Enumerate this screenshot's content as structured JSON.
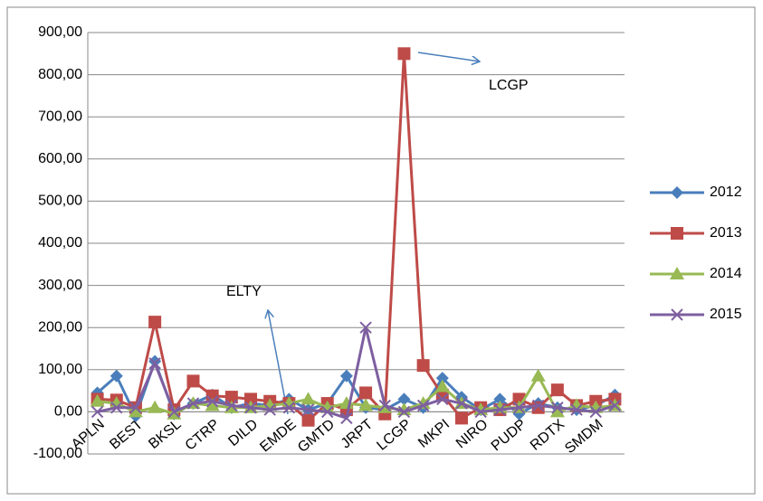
{
  "chart_data": {
    "type": "line",
    "categories": [
      "APLN",
      null,
      "BEST",
      null,
      "BKSL",
      null,
      "CTRP",
      null,
      "DILD",
      null,
      "EMDE",
      null,
      "GMTD",
      null,
      "JRPT",
      null,
      "LCGP",
      null,
      "MKPI",
      null,
      "NIRO",
      null,
      "PUDP",
      null,
      "RDTX",
      null,
      "SMDM",
      null
    ],
    "series": [
      {
        "name": "2012",
        "color": "#4a7ebb",
        "marker": "diamond",
        "values": [
          45,
          85,
          -10,
          120,
          -5,
          20,
          40,
          10,
          20,
          15,
          30,
          5,
          20,
          85,
          10,
          5,
          30,
          10,
          80,
          35,
          5,
          30,
          -5,
          20,
          10,
          5,
          15,
          40
        ]
      },
      {
        "name": "2013",
        "color": "#be4b48",
        "marker": "square",
        "values": [
          30,
          28,
          10,
          213,
          5,
          73,
          38,
          35,
          30,
          25,
          20,
          -20,
          20,
          5,
          45,
          -5,
          850,
          110,
          40,
          -15,
          10,
          5,
          30,
          10,
          52,
          15,
          25,
          30
        ]
      },
      {
        "name": "2014",
        "color": "#98b954",
        "marker": "triangle",
        "values": [
          25,
          20,
          0,
          10,
          -5,
          20,
          15,
          10,
          10,
          15,
          20,
          30,
          10,
          20,
          15,
          10,
          5,
          20,
          60,
          20,
          5,
          10,
          10,
          85,
          0,
          15,
          10,
          15
        ]
      },
      {
        "name": "2015",
        "color": "#7d5fa0",
        "marker": "x",
        "values": [
          0,
          10,
          10,
          115,
          0,
          20,
          25,
          15,
          10,
          5,
          10,
          5,
          0,
          -15,
          200,
          15,
          0,
          15,
          30,
          20,
          0,
          5,
          10,
          15,
          10,
          5,
          0,
          15
        ]
      }
    ],
    "ylim": [
      -100,
      900
    ],
    "yticks": [
      {
        "value": -100,
        "label": "-100,00"
      },
      {
        "value": 0,
        "label": "0,00"
      },
      {
        "value": 100,
        "label": "100,00"
      },
      {
        "value": 200,
        "label": "200,00"
      },
      {
        "value": 300,
        "label": "300,00"
      },
      {
        "value": 400,
        "label": "400,00"
      },
      {
        "value": 500,
        "label": "500,00"
      },
      {
        "value": 600,
        "label": "600,00"
      },
      {
        "value": 700,
        "label": "700,00"
      },
      {
        "value": 800,
        "label": "800,00"
      },
      {
        "value": 900,
        "label": "900,00"
      }
    ],
    "grid": true,
    "legend": "right",
    "annotations": [
      "LCGP",
      "ELTY"
    ]
  }
}
